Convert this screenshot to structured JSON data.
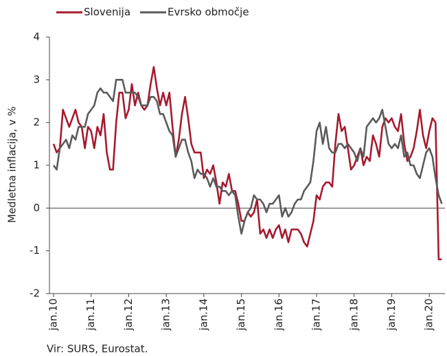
{
  "chart_data": {
    "type": "line",
    "y_label": "Medletna inflacija, v %",
    "source": "Vir: SURS, Eurostat.",
    "categories": [
      "jan.10",
      null,
      null,
      null,
      null,
      null,
      null,
      null,
      null,
      null,
      null,
      null,
      "jan.11",
      null,
      null,
      null,
      null,
      null,
      null,
      null,
      null,
      null,
      null,
      null,
      "jan.12",
      null,
      null,
      null,
      null,
      null,
      null,
      null,
      null,
      null,
      null,
      null,
      "jan.13",
      null,
      null,
      null,
      null,
      null,
      null,
      null,
      null,
      null,
      null,
      null,
      "jan.14",
      null,
      null,
      null,
      null,
      null,
      null,
      null,
      null,
      null,
      null,
      null,
      "jan.15",
      null,
      null,
      null,
      null,
      null,
      null,
      null,
      null,
      null,
      null,
      null,
      "jan.16",
      null,
      null,
      null,
      null,
      null,
      null,
      null,
      null,
      null,
      null,
      null,
      "jan.17",
      null,
      null,
      null,
      null,
      null,
      null,
      null,
      null,
      null,
      null,
      null,
      "jan.18",
      null,
      null,
      null,
      null,
      null,
      null,
      null,
      null,
      null,
      null,
      null,
      "jan.19",
      null,
      null,
      null,
      null,
      null,
      null,
      null,
      null,
      null,
      null,
      null,
      "jan.20",
      null,
      null,
      null,
      null
    ],
    "series": [
      {
        "name": "Slovenija",
        "color": "#a6192e",
        "values": [
          1.5,
          1.3,
          1.4,
          2.3,
          2.1,
          1.9,
          2.1,
          2.3,
          2.0,
          1.9,
          1.4,
          1.9,
          1.8,
          1.4,
          1.9,
          1.7,
          2.2,
          1.3,
          0.9,
          0.9,
          2.0,
          2.7,
          2.7,
          2.1,
          2.3,
          2.9,
          2.4,
          2.7,
          2.4,
          2.3,
          2.4,
          2.9,
          3.3,
          2.8,
          2.4,
          2.7,
          2.4,
          2.7,
          1.9,
          1.2,
          1.6,
          2.2,
          2.6,
          2.1,
          1.5,
          1.3,
          1.3,
          1.3,
          0.7,
          0.9,
          0.8,
          1.0,
          0.6,
          0.1,
          0.6,
          0.5,
          0.8,
          0.4,
          0.4,
          0.1,
          -0.3,
          -0.3,
          -0.1,
          -0.2,
          -0.1,
          0.2,
          -0.6,
          -0.5,
          -0.7,
          -0.5,
          -0.7,
          -0.5,
          -0.4,
          -0.7,
          -0.5,
          -0.8,
          -0.5,
          -0.5,
          -0.5,
          -0.6,
          -0.8,
          -0.9,
          -0.6,
          -0.3,
          0.3,
          0.2,
          0.5,
          0.6,
          0.6,
          0.5,
          1.5,
          2.2,
          1.8,
          1.9,
          1.4,
          0.9,
          1.0,
          1.2,
          1.4,
          1.0,
          1.2,
          1.1,
          1.7,
          1.5,
          1.2,
          1.9,
          2.1,
          2.0,
          2.1,
          1.9,
          1.8,
          2.2,
          1.5,
          1.1,
          1.2,
          1.4,
          1.8,
          2.3,
          1.7,
          1.4,
          1.8,
          2.1,
          2.0,
          -1.2,
          -1.2
        ]
      },
      {
        "name": "Evrsko območje",
        "color": "#5a5a5a",
        "values": [
          1.0,
          0.9,
          1.4,
          1.5,
          1.6,
          1.4,
          1.7,
          1.6,
          1.9,
          1.9,
          1.9,
          2.2,
          2.3,
          2.4,
          2.7,
          2.8,
          2.7,
          2.7,
          2.6,
          2.5,
          3.0,
          3.0,
          3.0,
          2.7,
          2.7,
          2.7,
          2.7,
          2.6,
          2.4,
          2.4,
          2.4,
          2.6,
          2.6,
          2.5,
          2.2,
          2.2,
          2.0,
          1.8,
          1.7,
          1.2,
          1.4,
          1.6,
          1.6,
          1.3,
          1.1,
          0.7,
          0.9,
          0.8,
          0.8,
          0.7,
          0.5,
          0.7,
          0.5,
          0.5,
          0.4,
          0.4,
          0.3,
          0.4,
          0.3,
          -0.2,
          -0.6,
          -0.3,
          -0.1,
          0.0,
          0.3,
          0.2,
          0.2,
          0.1,
          -0.1,
          0.1,
          0.1,
          0.2,
          0.3,
          -0.2,
          0.0,
          -0.2,
          -0.1,
          0.1,
          0.2,
          0.2,
          0.4,
          0.5,
          0.6,
          1.1,
          1.8,
          2.0,
          1.5,
          1.9,
          1.4,
          1.3,
          1.3,
          1.5,
          1.5,
          1.4,
          1.5,
          1.4,
          1.3,
          1.1,
          1.4,
          1.2,
          1.9,
          2.0,
          2.1,
          2.0,
          2.1,
          2.3,
          1.9,
          1.5,
          1.4,
          1.5,
          1.4,
          1.7,
          1.2,
          1.3,
          1.0,
          1.0,
          0.8,
          0.7,
          1.0,
          1.3,
          1.4,
          1.2,
          0.7,
          0.3,
          0.1
        ]
      }
    ],
    "ylim": [
      -2,
      4
    ],
    "yticks": [
      -2,
      -1,
      0,
      1,
      2,
      3,
      4
    ],
    "grid": false,
    "legend": "top"
  }
}
